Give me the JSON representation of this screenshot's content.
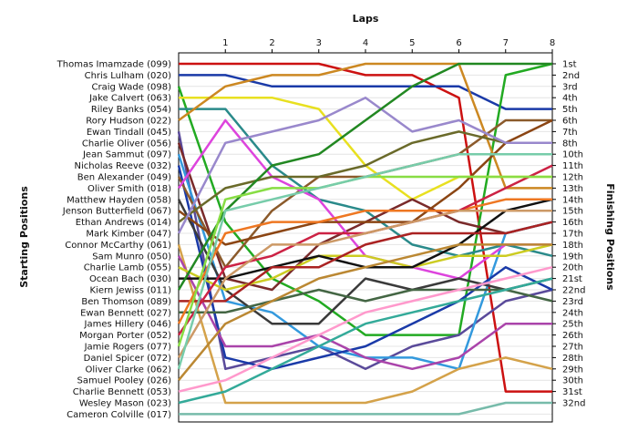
{
  "chart_data": {
    "type": "line",
    "title": "",
    "xlabel": "Laps",
    "ylabel_left": "Starting Positions",
    "ylabel_right": "Finishing Positions",
    "x": [
      0,
      1,
      2,
      3,
      4,
      5,
      6,
      7,
      8
    ],
    "x_tick_labels": [
      "1",
      "2",
      "3",
      "4",
      "5",
      "6",
      "7",
      "8"
    ],
    "ylim": [
      1,
      32
    ],
    "grid": true,
    "legend": "none",
    "finishing_labels": [
      "1st",
      "2nd",
      "3rd",
      "4th",
      "5th",
      "6th",
      "7th",
      "8th",
      "10th",
      "11th",
      "12th",
      "13th",
      "14th",
      "15th",
      "16th",
      "17th",
      "18th",
      "19th",
      "20th",
      "21st",
      "22nd",
      "23rd",
      "24th",
      "25th",
      "26th",
      "27th",
      "28th",
      "29th",
      "30th",
      "31st",
      "32nd"
    ],
    "series": [
      {
        "name": "Thomas Imamzade (099)",
        "color": "#cc1111",
        "positions": [
          1,
          1,
          1,
          1,
          2,
          2,
          4,
          30,
          30
        ]
      },
      {
        "name": "Chris Lulham (020)",
        "color": "#1a3aa8",
        "positions": [
          2,
          2,
          3,
          3,
          3,
          3,
          3,
          5,
          5
        ]
      },
      {
        "name": "Craig Wade (098)",
        "color": "#22aa22",
        "positions": [
          3,
          15,
          20,
          22,
          25,
          25,
          25,
          2,
          1
        ]
      },
      {
        "name": "Jake Calvert (063)",
        "color": "#e8e020",
        "positions": [
          4,
          4,
          4,
          5,
          10,
          13,
          11,
          11,
          11
        ]
      },
      {
        "name": "Riley Banks (054)",
        "color": "#2a8a8a",
        "positions": [
          5,
          5,
          10,
          13,
          14,
          17,
          18,
          17,
          18
        ]
      },
      {
        "name": "Rory Hudson (022)",
        "color": "#cc8822",
        "positions": [
          6,
          3,
          2,
          2,
          1,
          1,
          1,
          12,
          12
        ]
      },
      {
        "name": "Ewan Tindall (045)",
        "color": "#5a4a9a",
        "positions": [
          7,
          28,
          27,
          26,
          28,
          26,
          25,
          22,
          21
        ]
      },
      {
        "name": "Charlie Oliver (056)",
        "color": "#7a2a2a",
        "positions": [
          8,
          20,
          21,
          17,
          15,
          13,
          15,
          16,
          15
        ]
      },
      {
        "name": "Jean Sammut (097)",
        "color": "#3399dd",
        "positions": [
          9,
          22,
          23,
          26,
          27,
          27,
          28,
          16,
          15
        ]
      },
      {
        "name": "Nicholas Reeve (032)",
        "color": "#1a3aa8",
        "positions": [
          10,
          27,
          28,
          27,
          26,
          24,
          22,
          19,
          21
        ]
      },
      {
        "name": "Ben Alexander (049)",
        "color": "#8b5a2b",
        "positions": [
          11,
          19,
          14,
          11,
          11,
          10,
          9,
          6,
          6
        ]
      },
      {
        "name": "Oliver Smith (018)",
        "color": "#dd44dd",
        "positions": [
          12,
          6,
          11,
          13,
          18,
          19,
          20,
          17,
          17
        ]
      },
      {
        "name": "Matthew Hayden (058)",
        "color": "#3a3a3a",
        "positions": [
          13,
          21,
          24,
          24,
          20,
          21,
          20,
          21,
          20
        ]
      },
      {
        "name": "Jenson Butterfield (067)",
        "color": "#8b4513",
        "positions": [
          14,
          17,
          16,
          15,
          15,
          15,
          12,
          8,
          6
        ]
      },
      {
        "name": "Ethan Andrews (014)",
        "color": "#6a6a2a",
        "positions": [
          15,
          12,
          11,
          11,
          10,
          8,
          7,
          8,
          8
        ]
      },
      {
        "name": "Mark Kimber (047)",
        "color": "#9988cc",
        "positions": [
          16,
          8,
          7,
          6,
          4,
          7,
          6,
          8,
          8
        ]
      },
      {
        "name": "Connor McCarthy (061)",
        "color": "#d4a24a",
        "positions": [
          17,
          31,
          31,
          31,
          31,
          30,
          28,
          27,
          28
        ]
      },
      {
        "name": "Sam Munro (050)",
        "color": "#aa44aa",
        "positions": [
          18,
          26,
          26,
          25,
          27,
          28,
          27,
          24,
          24
        ]
      },
      {
        "name": "Charlie Lamb (055)",
        "color": "#cccc22",
        "positions": [
          19,
          21,
          20,
          18,
          18,
          19,
          18,
          18,
          17
        ]
      },
      {
        "name": "Ocean Bach (030)",
        "color": "#111111",
        "positions": [
          20,
          20,
          19,
          18,
          19,
          19,
          17,
          14,
          13
        ]
      },
      {
        "name": "Kiern Jewiss (011)",
        "color": "#228822",
        "positions": [
          21,
          14,
          10,
          9,
          6,
          3,
          1,
          1,
          1
        ]
      },
      {
        "name": "Ben Thomson (089)",
        "color": "#aa2222",
        "positions": [
          22,
          22,
          19,
          19,
          17,
          16,
          16,
          16,
          15
        ]
      },
      {
        "name": "Ewan Bennett (027)",
        "color": "#446644",
        "positions": [
          23,
          23,
          22,
          21,
          22,
          21,
          21,
          21,
          22
        ]
      },
      {
        "name": "James Hillery (046)",
        "color": "#ee7722",
        "positions": [
          24,
          16,
          15,
          15,
          14,
          14,
          14,
          13,
          13
        ]
      },
      {
        "name": "Morgan Porter (052)",
        "color": "#cc2244",
        "positions": [
          25,
          19,
          18,
          16,
          16,
          15,
          14,
          12,
          10
        ]
      },
      {
        "name": "Jamie Rogers (077)",
        "color": "#88dd44",
        "positions": [
          26,
          13,
          12,
          12,
          11,
          11,
          11,
          11,
          11
        ]
      },
      {
        "name": "Daniel Spicer (072)",
        "color": "#cc9966",
        "positions": [
          27,
          20,
          17,
          17,
          16,
          15,
          14,
          14,
          14
        ]
      },
      {
        "name": "Oliver Clarke (062)",
        "color": "#77ccaa",
        "positions": [
          28,
          14,
          13,
          12,
          11,
          10,
          9,
          9,
          9
        ]
      },
      {
        "name": "Samuel Pooley (026)",
        "color": "#bb8833",
        "positions": [
          29,
          24,
          22,
          20,
          19,
          18,
          17,
          17,
          17
        ]
      },
      {
        "name": "Charlie Bennett (053)",
        "color": "#ff99cc",
        "positions": [
          30,
          29,
          27,
          25,
          23,
          22,
          21,
          20,
          19
        ]
      },
      {
        "name": "Wesley Mason (023)",
        "color": "#33aa99",
        "positions": [
          31,
          30,
          28,
          26,
          24,
          23,
          22,
          21,
          20
        ]
      },
      {
        "name": "Cameron Colville (017)",
        "color": "#77bbaa",
        "positions": [
          32,
          32,
          32,
          32,
          32,
          32,
          32,
          31,
          31
        ]
      }
    ]
  }
}
